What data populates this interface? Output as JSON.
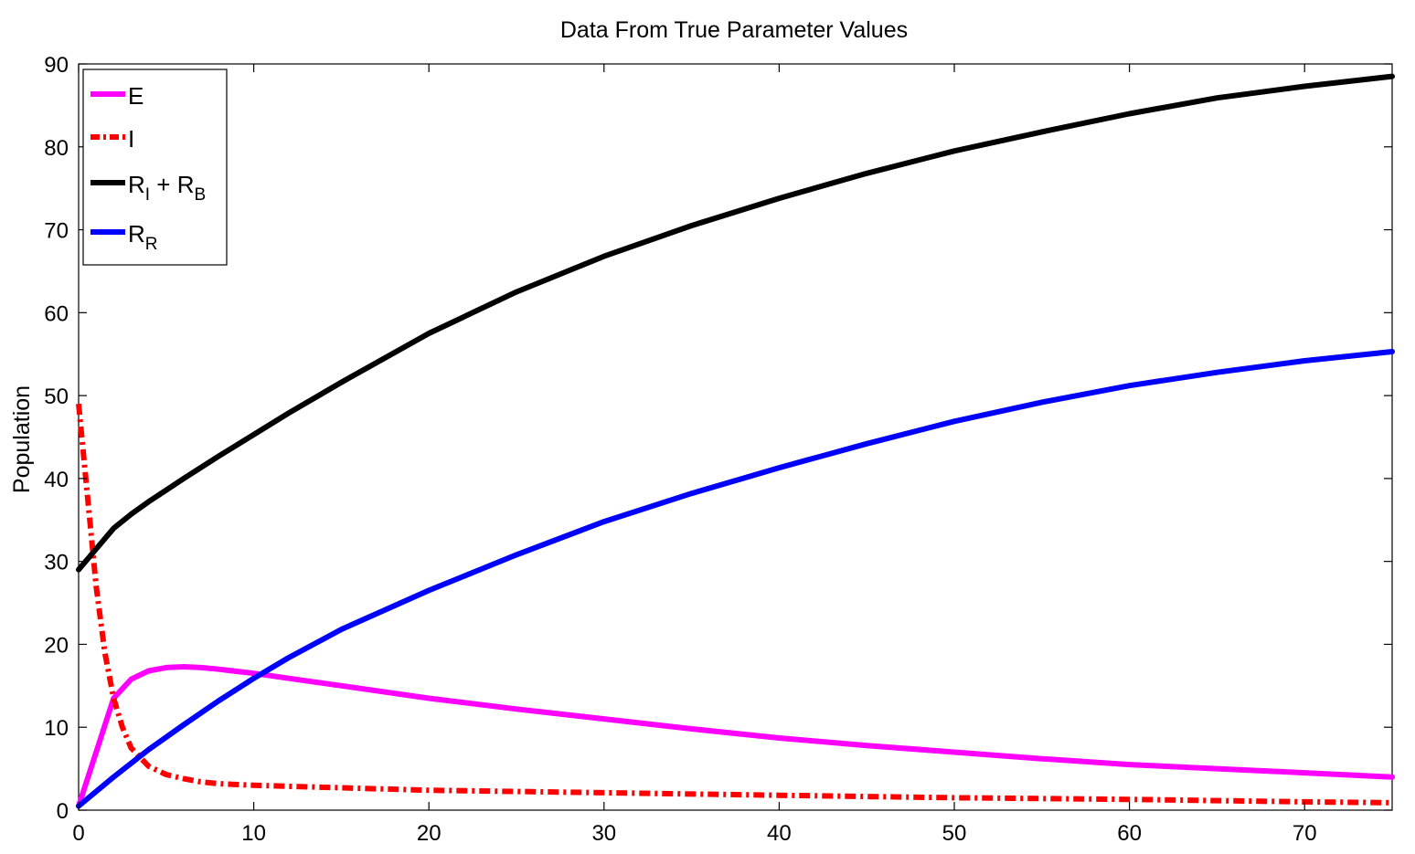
{
  "chart_data": {
    "type": "line",
    "title": "Data From True Parameter Values",
    "xlabel": "",
    "ylabel": "Population",
    "xlim": [
      0,
      75
    ],
    "ylim": [
      0,
      90
    ],
    "xticks": [
      0,
      10,
      20,
      30,
      40,
      50,
      60,
      70
    ],
    "yticks": [
      0,
      10,
      20,
      30,
      40,
      50,
      60,
      70,
      80,
      90
    ],
    "grid": false,
    "legend_position": "top-left",
    "series": [
      {
        "name": "E",
        "legend": {
          "main": "E",
          "sub": ""
        },
        "color": "#ff00ff",
        "dash": "solid",
        "x": [
          0,
          1,
          2,
          3,
          4,
          5,
          6,
          7,
          8,
          10,
          12,
          15,
          20,
          25,
          30,
          35,
          40,
          45,
          50,
          55,
          60,
          65,
          70,
          75
        ],
        "y": [
          0.5,
          7,
          13.5,
          15.8,
          16.8,
          17.2,
          17.3,
          17.2,
          17.0,
          16.5,
          15.9,
          15.0,
          13.5,
          12.2,
          11.0,
          9.8,
          8.7,
          7.8,
          7.0,
          6.2,
          5.5,
          5.0,
          4.5,
          4.0
        ]
      },
      {
        "name": "I",
        "legend": {
          "main": "I",
          "sub": ""
        },
        "color": "#ff0000",
        "dash": "dashdot",
        "x": [
          0,
          0.5,
          1,
          1.5,
          2,
          2.5,
          3,
          4,
          5,
          6,
          7,
          8,
          10,
          15,
          20,
          30,
          40,
          50,
          60,
          70,
          75
        ],
        "y": [
          49,
          38,
          27,
          19,
          13.5,
          10,
          7.5,
          5.3,
          4.3,
          3.8,
          3.4,
          3.2,
          3.0,
          2.7,
          2.4,
          2.1,
          1.8,
          1.5,
          1.3,
          1.0,
          0.9
        ]
      },
      {
        "name": "R_I + R_B",
        "legend": {
          "main": "R",
          "sub": "I",
          "plus": " + ",
          "main2": "R",
          "sub2": "B"
        },
        "color": "#000000",
        "dash": "solid",
        "x": [
          0,
          1,
          2,
          3,
          4,
          5,
          6,
          8,
          10,
          12,
          15,
          20,
          25,
          30,
          35,
          40,
          45,
          50,
          55,
          60,
          65,
          70,
          75
        ],
        "y": [
          29,
          31.5,
          34,
          35.7,
          37.2,
          38.6,
          40,
          42.7,
          45.3,
          47.9,
          51.6,
          57.5,
          62.5,
          66.8,
          70.5,
          73.8,
          76.8,
          79.5,
          81.8,
          84.0,
          85.9,
          87.3,
          88.5
        ]
      },
      {
        "name": "R_R",
        "legend": {
          "main": "R",
          "sub": "R"
        },
        "color": "#0000ff",
        "dash": "solid",
        "x": [
          0,
          2,
          4,
          6,
          8,
          10,
          12,
          15,
          20,
          25,
          30,
          35,
          40,
          45,
          50,
          55,
          60,
          65,
          70,
          75
        ],
        "y": [
          0.5,
          4.0,
          7.3,
          10.3,
          13.2,
          15.9,
          18.4,
          21.8,
          26.5,
          30.8,
          34.8,
          38.2,
          41.3,
          44.2,
          46.9,
          49.2,
          51.2,
          52.8,
          54.2,
          55.3
        ]
      }
    ]
  }
}
